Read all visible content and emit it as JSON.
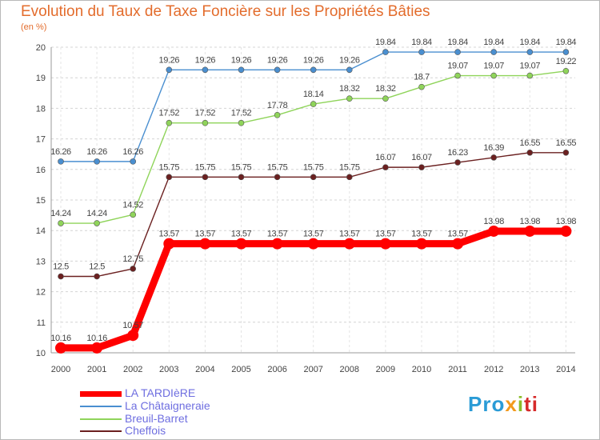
{
  "chart_data": {
    "type": "line",
    "title": "Evolution du Taux de Taxe Foncière sur les Propriétés Bâties",
    "unit_label": "(en %)",
    "x": [
      "2000",
      "2001",
      "2002",
      "2003",
      "2004",
      "2005",
      "2006",
      "2007",
      "2008",
      "2009",
      "2010",
      "2011",
      "2012",
      "2013",
      "2014"
    ],
    "ylim": [
      10,
      20
    ],
    "yticks": [
      "10",
      "11",
      "12",
      "13",
      "14",
      "15",
      "16",
      "17",
      "18",
      "19",
      "20"
    ],
    "grid": true,
    "series": [
      {
        "name": "LA TARDIèRE",
        "color": "#ff0000",
        "values": [
          10.16,
          10.16,
          10.57,
          13.57,
          13.57,
          13.57,
          13.57,
          13.57,
          13.57,
          13.57,
          13.57,
          13.57,
          13.98,
          13.98,
          13.98
        ],
        "labels": [
          "10.16",
          "10.16",
          "10.57",
          "13.57",
          "13.57",
          "13.57",
          "13.57",
          "13.57",
          "13.57",
          "13.57",
          "13.57",
          "13.57",
          "13.98",
          "13.98",
          "13.98"
        ]
      },
      {
        "name": "La Châtaigneraie",
        "color": "#4a8fd0",
        "values": [
          16.26,
          16.26,
          16.26,
          19.26,
          19.26,
          19.26,
          19.26,
          19.26,
          19.26,
          19.84,
          19.84,
          19.84,
          19.84,
          19.84,
          19.84
        ],
        "labels": [
          "16.26",
          "16.26",
          "16.26",
          "19.26",
          "19.26",
          "19.26",
          "19.26",
          "19.26",
          "19.26",
          "19.84",
          "19.84",
          "19.84",
          "19.84",
          "19.84",
          "19.84"
        ]
      },
      {
        "name": "Breuil-Barret",
        "color": "#8fd45a",
        "values": [
          14.24,
          14.24,
          14.52,
          17.52,
          17.52,
          17.52,
          17.78,
          18.14,
          18.32,
          18.32,
          18.7,
          19.07,
          19.07,
          19.07,
          19.22
        ],
        "labels": [
          "14.24",
          "14.24",
          "14.52",
          "17.52",
          "17.52",
          "17.52",
          "17.78",
          "18.14",
          "18.32",
          "18.32",
          "18.7",
          "19.07",
          "19.07",
          "19.07",
          "19.22"
        ]
      },
      {
        "name": "Cheffois",
        "color": "#6b2020",
        "values": [
          12.5,
          12.5,
          12.75,
          15.75,
          15.75,
          15.75,
          15.75,
          15.75,
          15.75,
          16.07,
          16.07,
          16.23,
          16.39,
          16.55,
          16.55
        ],
        "labels": [
          "12.5",
          "12.5",
          "12.75",
          "15.75",
          "15.75",
          "15.75",
          "15.75",
          "15.75",
          "15.75",
          "16.07",
          "16.07",
          "16.23",
          "16.39",
          "16.55",
          "16.55"
        ]
      }
    ],
    "legend_position": "bottom-left"
  },
  "logo": {
    "p1": "Pro",
    "p2": "x",
    "p3": "i",
    "p4": "ti"
  }
}
